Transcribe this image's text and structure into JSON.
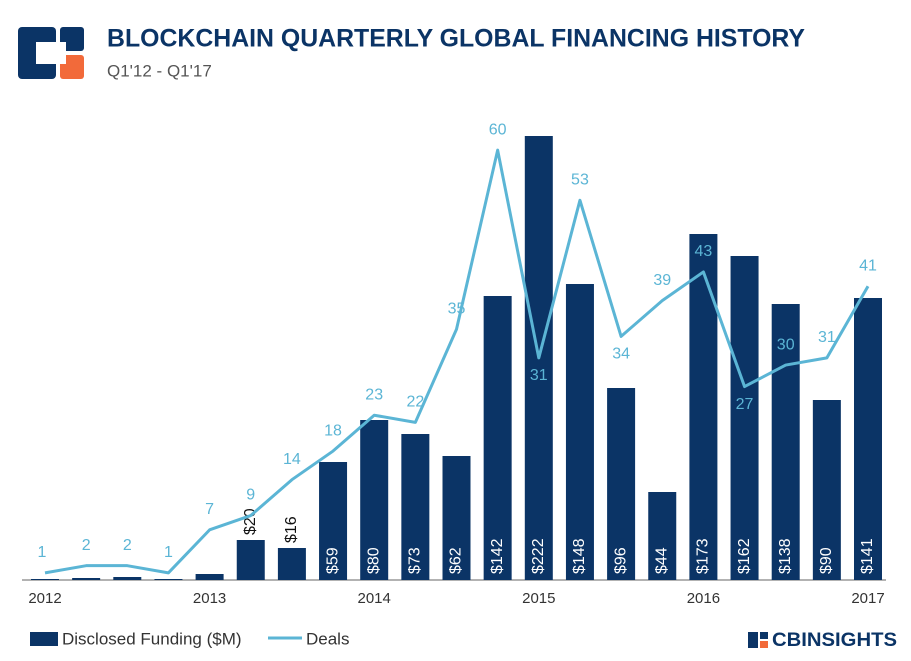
{
  "chart_data": {
    "type": "bar-line",
    "title": "BLOCKCHAIN QUARTERLY GLOBAL FINANCING HISTORY",
    "subtitle": "Q1'12 - Q1'17",
    "categories": [
      "2012",
      null,
      null,
      null,
      "2013",
      null,
      null,
      null,
      "2014",
      null,
      null,
      null,
      "2015",
      null,
      null,
      null,
      "2016",
      null,
      null,
      null,
      "2017"
    ],
    "series": [
      {
        "name": "Disclosed Funding ($M)",
        "type": "bar",
        "color": "#0b3466",
        "values": [
          0.5,
          1,
          1.5,
          0.5,
          3,
          20,
          16,
          59,
          80,
          73,
          62,
          142,
          222,
          148,
          96,
          44,
          173,
          162,
          138,
          90,
          141
        ],
        "value_labels": [
          null,
          null,
          null,
          null,
          null,
          "$20",
          "$16",
          "$59",
          "$80",
          "$73",
          "$62",
          "$142",
          "$222",
          "$148",
          "$96",
          "$44",
          "$173",
          "$162",
          "$138",
          "$90",
          "$141"
        ]
      },
      {
        "name": "Deals",
        "type": "line",
        "axis": "y2",
        "color": "#5bb5d5",
        "values": [
          1,
          2,
          2,
          1,
          7,
          9,
          14,
          18,
          23,
          22,
          35,
          60,
          31,
          53,
          34,
          39,
          43,
          27,
          30,
          31,
          41
        ]
      }
    ],
    "ylim": [
      0,
      240
    ],
    "y2lim": [
      0,
      67
    ],
    "brand": "CBINSIGHTS"
  }
}
